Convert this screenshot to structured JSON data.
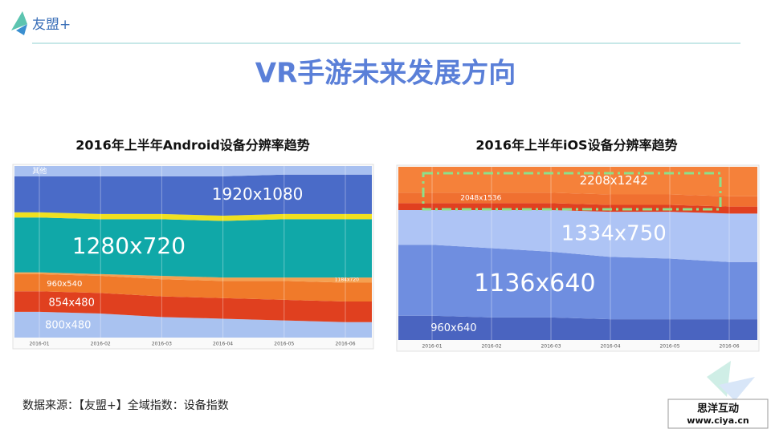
{
  "header": {
    "logo": "友盟+",
    "title": "VR手游未来发展方向"
  },
  "chart_data": [
    {
      "type": "area",
      "stacked": true,
      "title": "2016年上半年Android设备分辨率趋势",
      "categories": [
        "2016-01",
        "2016-02",
        "2016-03",
        "2016-04",
        "2016-05",
        "2016-06"
      ],
      "ylim": [
        0,
        100
      ],
      "series": [
        {
          "name": "800x480",
          "color": "#a9c2f0",
          "values": [
            15,
            14,
            12,
            11,
            10,
            9
          ]
        },
        {
          "name": "854x480",
          "color": "#e0401f",
          "values": [
            12,
            12,
            12,
            12,
            12,
            12
          ]
        },
        {
          "name": "960x540",
          "color": "#f07a2a",
          "values": [
            10,
            10,
            10,
            10,
            11,
            11
          ]
        },
        {
          "name": "1184x720",
          "color": "#f5a050",
          "values": [
            1,
            1,
            2,
            2,
            2,
            3
          ]
        },
        {
          "name": "1280x720",
          "color": "#10a8a8",
          "values": [
            32,
            32,
            33,
            33,
            34,
            34
          ]
        },
        {
          "color": "#f0e020",
          "values": [
            3,
            3,
            3,
            3,
            3,
            3
          ]
        },
        {
          "name": "1920x1080",
          "color": "#4a6bc8",
          "values": [
            21,
            22,
            22,
            23,
            23,
            23
          ]
        },
        {
          "name": "其他",
          "color": "#a8c0f0",
          "values": [
            6,
            6,
            6,
            6,
            5,
            5
          ]
        }
      ]
    },
    {
      "type": "area",
      "stacked": true,
      "title": "2016年上半年iOS设备分辨率趋势",
      "categories": [
        "2016-01",
        "2016-02",
        "2016-03",
        "2016-04",
        "2016-05",
        "2016-06"
      ],
      "ylim": [
        0,
        100
      ],
      "series": [
        {
          "name": "960x640",
          "color": "#4a64c0",
          "values": [
            14,
            13,
            13,
            12,
            12,
            12
          ]
        },
        {
          "name": "1136x640",
          "color": "#6f8ee0",
          "values": [
            41,
            40,
            38,
            36,
            35,
            33
          ]
        },
        {
          "name": "1334x750",
          "color": "#aec4f5",
          "values": [
            20,
            22,
            24,
            26,
            27,
            28
          ]
        },
        {
          "color": "#e04020",
          "values": [
            4,
            4,
            4,
            4,
            4,
            4
          ]
        },
        {
          "name": "2048x1536",
          "color": "#f07030",
          "values": [
            6,
            6,
            6,
            6,
            6,
            6
          ]
        },
        {
          "name": "2208x1242",
          "color": "#f5813a",
          "values": [
            15,
            15,
            15,
            16,
            16,
            17
          ]
        }
      ]
    }
  ],
  "footer": {
    "source": "数据来源：【友盟+】全域指数：设备指数",
    "watermark_name": "思洋互动",
    "watermark_url": "www.ciya.cn"
  }
}
